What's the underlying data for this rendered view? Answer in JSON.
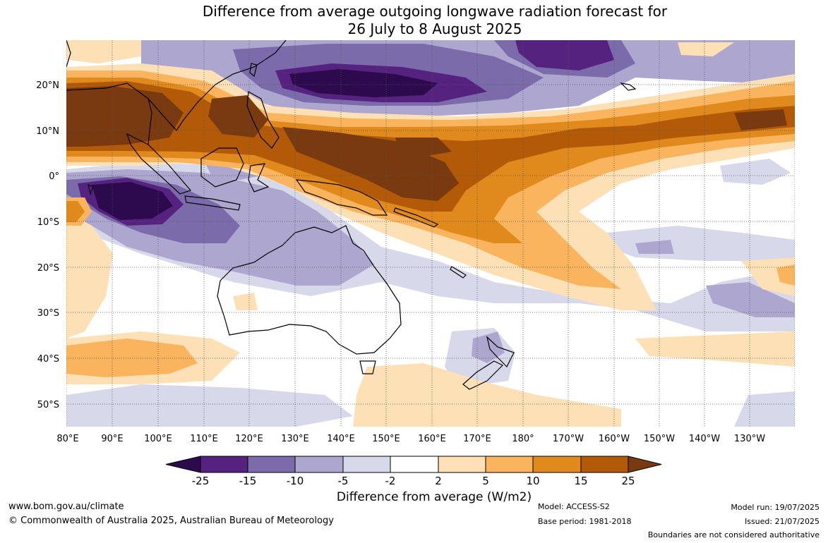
{
  "title_line1": "Difference from average outgoing longwave radiation forecast for",
  "title_line2": "26 July to 8 August 2025",
  "lat_labels": [
    "20°N",
    "10°N",
    "0°",
    "10°S",
    "20°S",
    "30°S",
    "40°S",
    "50°S"
  ],
  "lon_labels": [
    "80°E",
    "90°E",
    "100°E",
    "110°E",
    "120°E",
    "130°E",
    "140°E",
    "150°E",
    "160°E",
    "170°E",
    "180°",
    "170°W",
    "160°W",
    "150°W",
    "140°W",
    "130°W"
  ],
  "colorbar": {
    "title": "Difference from average (W/m2)",
    "ticks": [
      "-25",
      "-15",
      "-10",
      "-5",
      "-2",
      "2",
      "5",
      "10",
      "15",
      "25"
    ],
    "colors": [
      "#2d0a4e",
      "#55237f",
      "#7c6baa",
      "#ada6cf",
      "#d8d8eb",
      "#ffffff",
      "#fde0b6",
      "#fbb45e",
      "#e08a1e",
      "#b35a08",
      "#7a3a10"
    ]
  },
  "colors": {
    "map_background": "#ffffff",
    "coast": "#000000",
    "grid": "#555555"
  },
  "footer": {
    "url": "www.bom.gov.au/climate",
    "copyright": "© Commonwealth of Australia 2025, Australian Bureau of Meteorology",
    "model": "Model: ACCESS-S2",
    "base_period": "Base period: 1981-2018",
    "model_run": "Model run: 19/07/2025",
    "issued": "Issued: 21/07/2025",
    "boundaries": "Boundaries are not considered authoritative"
  }
}
